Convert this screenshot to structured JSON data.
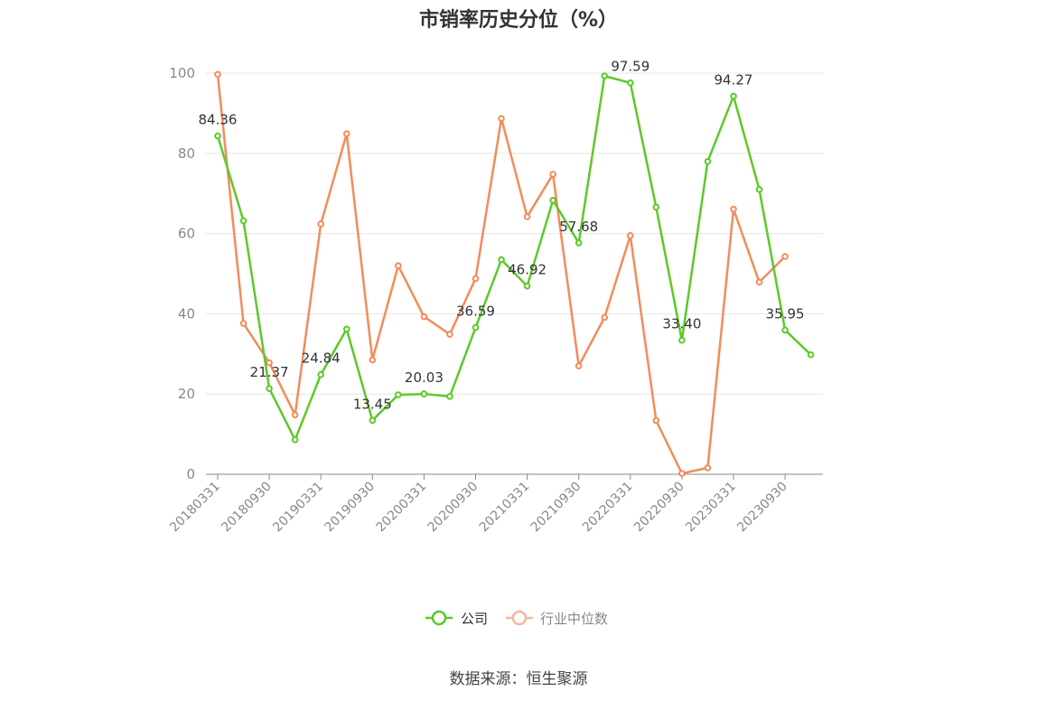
{
  "title": "市销率历史分位（%）",
  "source": "数据来源：恒生聚源",
  "colors": {
    "company": "#5cc92a",
    "industry": "#f28c5a",
    "industry_legend": "#f6b79a",
    "grid": "#e6e6e6",
    "axis": "#888888"
  },
  "chart_data": {
    "type": "line",
    "title": "市销率历史分位（%）",
    "ylim": [
      0,
      100
    ],
    "yticks": [
      0,
      20,
      40,
      60,
      80,
      100
    ],
    "grid": true,
    "legend_position": "bottom-center",
    "x": [
      "20180331",
      "20180630",
      "20180930",
      "20181231",
      "20190331",
      "20190630",
      "20190930",
      "20191231",
      "20200331",
      "20200630",
      "20200930",
      "20201231",
      "20210331",
      "20210630",
      "20210930",
      "20211231",
      "20220331",
      "20220630",
      "20220930",
      "20221231",
      "20230331",
      "20230630",
      "20230930",
      "20231231"
    ],
    "xtick_labels": [
      "20180331",
      "20180930",
      "20190331",
      "20190930",
      "20200331",
      "20200930",
      "20210331",
      "20210930",
      "20220331",
      "20220930",
      "20230331",
      "20230930"
    ],
    "series": [
      {
        "name": "公司",
        "values": [
          84.36,
          63.2,
          21.37,
          8.6,
          24.84,
          36.2,
          13.45,
          19.8,
          20.03,
          19.4,
          36.59,
          53.5,
          46.92,
          68.3,
          57.68,
          99.3,
          97.59,
          66.6,
          33.4,
          78.0,
          94.27,
          71.0,
          35.95,
          29.8
        ],
        "labels": [
          "84.36",
          "",
          "21.37",
          "",
          "24.84",
          "",
          "13.45",
          "",
          "20.03",
          "",
          "36.59",
          "",
          "46.92",
          "",
          "57.68",
          "",
          "97.59",
          "",
          "33.40",
          "",
          "94.27",
          "",
          "35.95",
          ""
        ]
      },
      {
        "name": "行业中位数",
        "values": [
          99.7,
          37.6,
          27.8,
          14.8,
          62.4,
          84.9,
          28.5,
          52.0,
          39.3,
          34.9,
          48.8,
          88.7,
          64.2,
          74.8,
          27.0,
          39.1,
          59.5,
          13.4,
          0.2,
          1.6,
          66.1,
          47.9,
          54.3,
          null
        ]
      }
    ]
  }
}
